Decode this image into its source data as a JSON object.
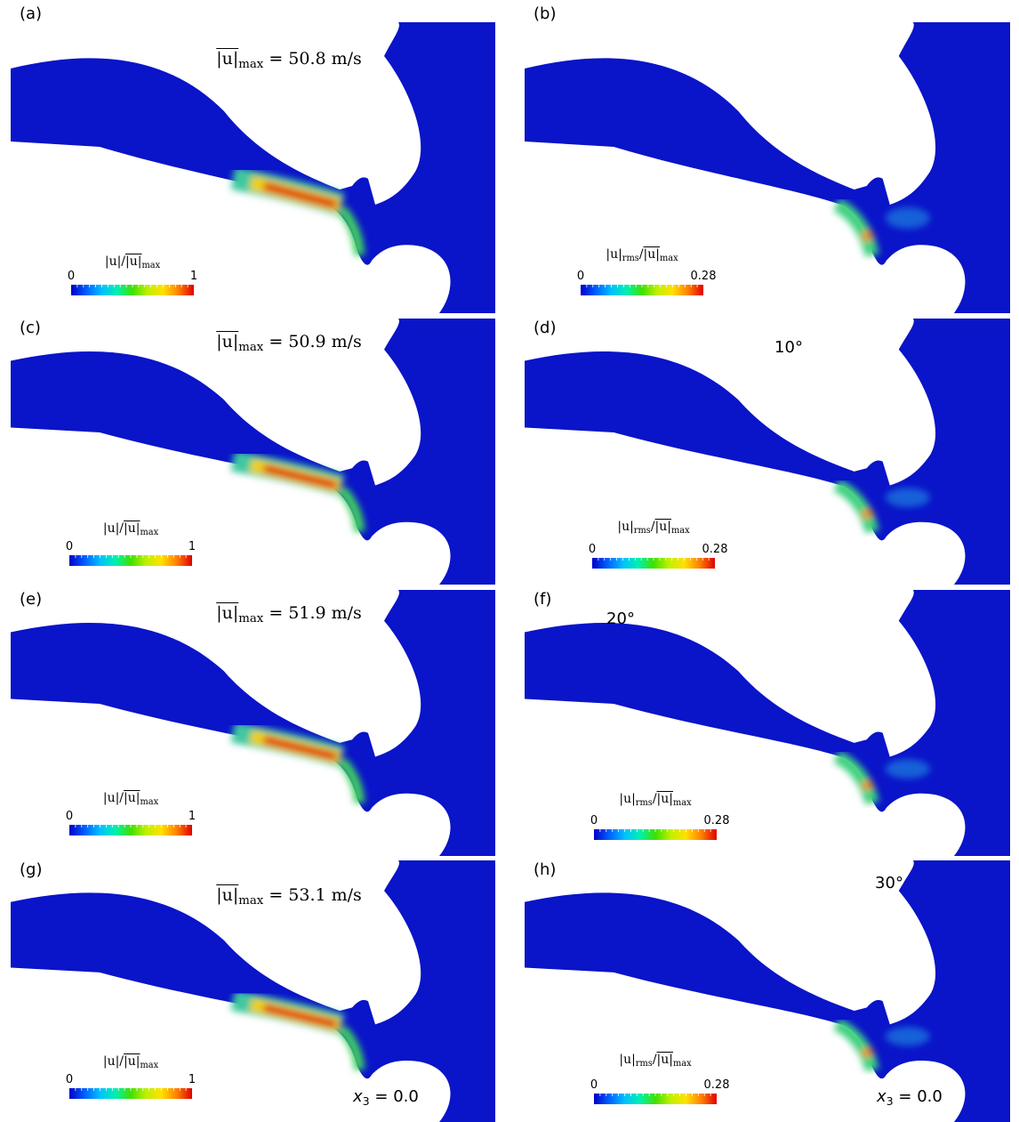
{
  "panels": [
    {
      "label": "(a)",
      "annotation": {
        "parts": [
          {
            "text": "|u|",
            "overline": true
          },
          {
            "text": "max",
            "sub": true
          },
          {
            "text": " = 50.8 m/s"
          }
        ]
      },
      "colorbar": {
        "parts": [
          {
            "text": "|u|/"
          },
          {
            "text": "|u|",
            "overline": true
          },
          {
            "text": "max",
            "sub": true
          }
        ],
        "min": 0,
        "max": 1
      }
    },
    {
      "label": "(b)",
      "colorbar": {
        "parts": [
          {
            "text": "|u|"
          },
          {
            "text": "rms",
            "sub": true
          },
          {
            "text": "/"
          },
          {
            "text": "|u|",
            "overline": true
          },
          {
            "text": "max",
            "sub": true
          }
        ],
        "min": 0,
        "max": 0.28
      }
    },
    {
      "label": "(c)",
      "annotation": {
        "parts": [
          {
            "text": "|u|",
            "overline": true
          },
          {
            "text": "max",
            "sub": true
          },
          {
            "text": " = 50.9 m/s"
          }
        ]
      },
      "colorbar": {
        "parts": [
          {
            "text": "|u|/"
          },
          {
            "text": "|u|",
            "overline": true
          },
          {
            "text": "max",
            "sub": true
          }
        ],
        "min": 0,
        "max": 1
      }
    },
    {
      "label": "(d)",
      "angle": "10°",
      "colorbar": {
        "parts": [
          {
            "text": "|u|"
          },
          {
            "text": "rms",
            "sub": true
          },
          {
            "text": "/"
          },
          {
            "text": "|u|",
            "overline": true
          },
          {
            "text": "max",
            "sub": true
          }
        ],
        "min": 0,
        "max": 0.28
      }
    },
    {
      "label": "(e)",
      "annotation": {
        "parts": [
          {
            "text": "|u|",
            "overline": true
          },
          {
            "text": "max",
            "sub": true
          },
          {
            "text": " = 51.9 m/s"
          }
        ]
      },
      "colorbar": {
        "parts": [
          {
            "text": "|u|/"
          },
          {
            "text": "|u|",
            "overline": true
          },
          {
            "text": "max",
            "sub": true
          }
        ],
        "min": 0,
        "max": 1
      }
    },
    {
      "label": "(f)",
      "angle": "20°",
      "colorbar": {
        "parts": [
          {
            "text": "|u|"
          },
          {
            "text": "rms",
            "sub": true
          },
          {
            "text": "/"
          },
          {
            "text": "|u|",
            "overline": true
          },
          {
            "text": "max",
            "sub": true
          }
        ],
        "min": 0,
        "max": 0.28
      }
    },
    {
      "label": "(g)",
      "annotation": {
        "parts": [
          {
            "text": "|u|",
            "overline": true
          },
          {
            "text": "max",
            "sub": true
          },
          {
            "text": " = 53.1 m/s"
          }
        ]
      },
      "colorbar": {
        "parts": [
          {
            "text": "|u|/"
          },
          {
            "text": "|u|",
            "overline": true
          },
          {
            "text": "max",
            "sub": true
          }
        ],
        "min": 0,
        "max": 1
      },
      "position": {
        "parts": [
          {
            "text": "x",
            "italic": true
          },
          {
            "text": "3",
            "sub": true
          },
          {
            "text": " = 0.0"
          }
        ]
      }
    },
    {
      "label": "(h)",
      "angle": "30°",
      "colorbar": {
        "parts": [
          {
            "text": "|u|"
          },
          {
            "text": "rms",
            "sub": true
          },
          {
            "text": "/"
          },
          {
            "text": "|u|",
            "overline": true
          },
          {
            "text": "max",
            "sub": true
          }
        ],
        "min": 0,
        "max": 0.28
      },
      "position": {
        "parts": [
          {
            "text": "x",
            "italic": true
          },
          {
            "text": "3",
            "sub": true
          },
          {
            "text": " = 0.0"
          }
        ]
      }
    }
  ]
}
